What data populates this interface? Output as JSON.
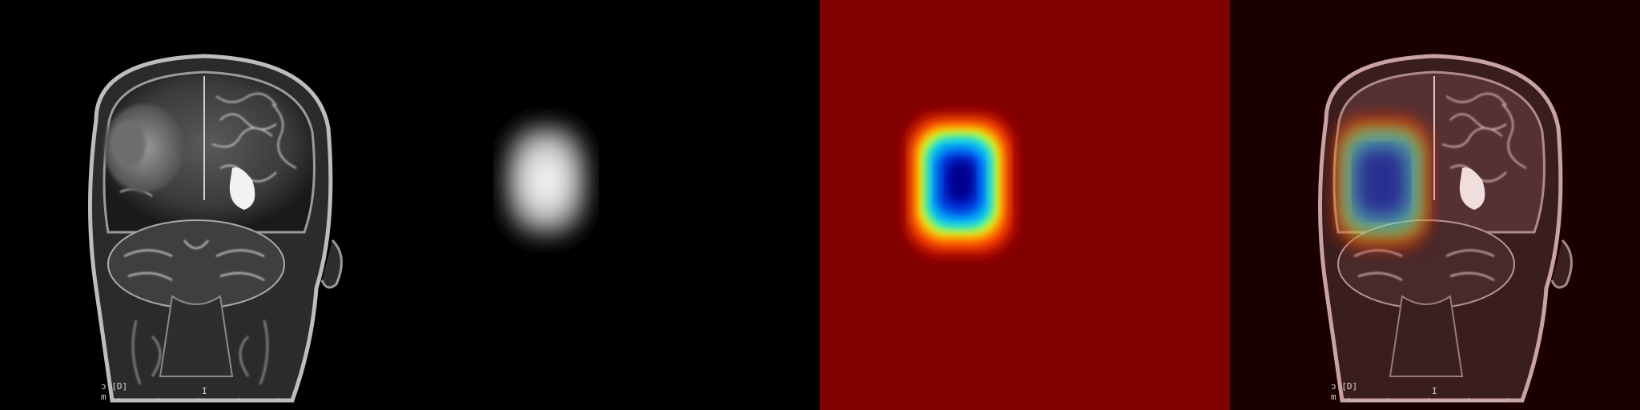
{
  "panels": [
    {
      "name": "mri-original",
      "overlay_text": "ɔ [D]\nm",
      "marker_text": "I"
    },
    {
      "name": "saliency-grayscale"
    },
    {
      "name": "saliency-jet"
    },
    {
      "name": "saliency-overlay",
      "overlay_text": "ɔ [D]\nm",
      "marker_text": "I"
    }
  ],
  "colors": {
    "background": "#000000",
    "jet_background": "#800000",
    "overlay_tint": "#300000"
  }
}
